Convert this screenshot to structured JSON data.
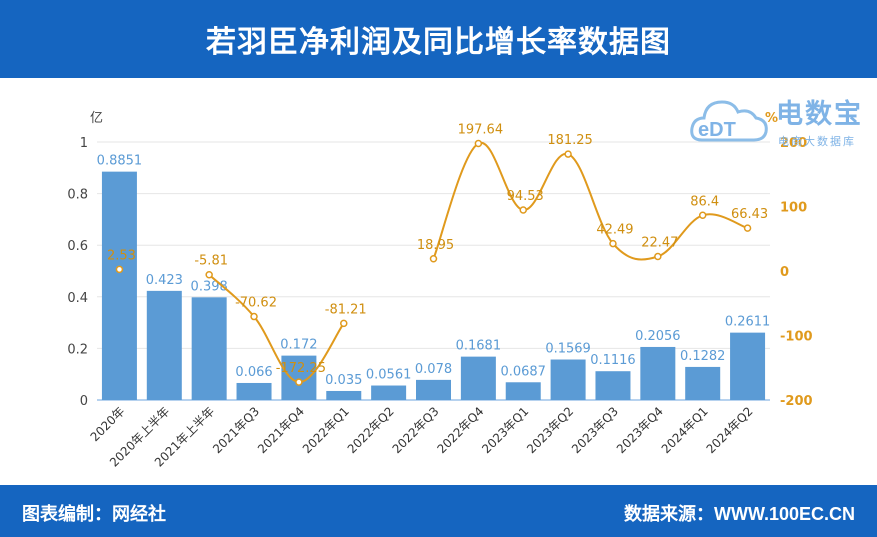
{
  "header": {
    "title": "若羽臣净利润及同比增长率数据图"
  },
  "footer": {
    "left": "图表编制：网经社",
    "right": "数据来源：WWW.100EC.CN"
  },
  "logo": {
    "brand": "电数宝",
    "sub": "电商大数据库",
    "mark": "eDT"
  },
  "colors": {
    "header_bg": "#1565c0",
    "bar": "#5b9bd5",
    "line": "#e09a1d",
    "bar_label": "#5b9bd5",
    "line_label": "#d08f10"
  },
  "chart_data": {
    "type": "bar+line",
    "categories": [
      "2020年",
      "2020年上半年",
      "2021年上半年",
      "2021年Q3",
      "2021年Q4",
      "2022年Q1",
      "2022年Q2",
      "2022年Q3",
      "2022年Q4",
      "2023年Q1",
      "2023年Q2",
      "2023年Q3",
      "2023年Q4",
      "2024年Q1",
      "2024年Q2"
    ],
    "series": [
      {
        "kind": "bar",
        "axis": "left",
        "values": [
          0.8851,
          0.423,
          0.398,
          0.066,
          0.172,
          0.035,
          0.0561,
          0.078,
          0.1681,
          0.0687,
          0.1569,
          0.1116,
          0.2056,
          0.1282,
          0.2611
        ],
        "labels": [
          "0.8851",
          "0.423",
          "0.398",
          "0.066",
          "0.172",
          "0.035",
          "0.0561",
          "0.078",
          "0.1681",
          "0.0687",
          "0.1569",
          "0.1116",
          "0.2056",
          "0.1282",
          "0.2611"
        ]
      },
      {
        "kind": "line",
        "axis": "right",
        "values": [
          2.53,
          null,
          -5.81,
          -70.62,
          -172.25,
          -81.21,
          null,
          18.95,
          197.64,
          94.53,
          181.25,
          42.49,
          22.47,
          86.4,
          66.43
        ],
        "labels": [
          "2.53",
          "",
          "-5.81",
          "-70.62",
          "-172.25",
          "-81.21",
          "",
          "18.95",
          "197.64",
          "94.53",
          "181.25",
          "42.49",
          "22.47",
          "86.4",
          "66.43"
        ]
      }
    ],
    "y_left": {
      "unit": "亿",
      "ticks": [
        "0",
        "0.2",
        "0.4",
        "0.6",
        "0.8",
        "1"
      ],
      "range": [
        0,
        1
      ]
    },
    "y_right": {
      "unit": "%",
      "ticks": [
        "-200",
        "-100",
        "0",
        "100",
        "200"
      ],
      "range": [
        -200,
        200
      ]
    },
    "grid": true
  }
}
